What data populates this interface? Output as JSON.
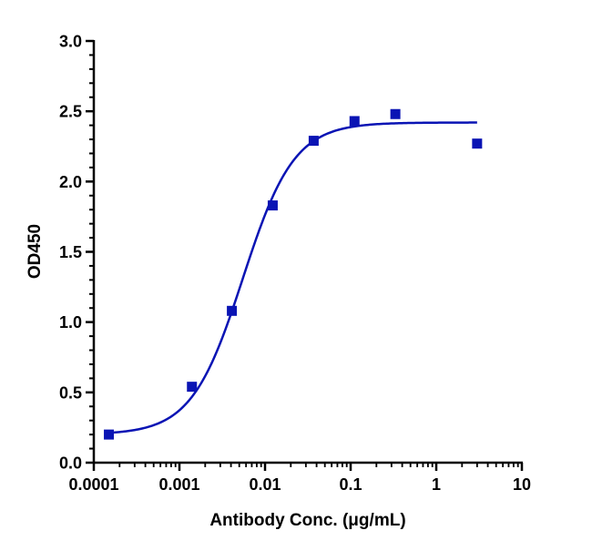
{
  "chart_data": {
    "type": "scatter",
    "title": "",
    "xlabel": "Antibody Conc. (μg/mL)",
    "ylabel": "OD450",
    "x_scale": "log",
    "xlim": [
      0.0001,
      10
    ],
    "ylim": [
      0,
      3.0
    ],
    "x_ticks": [
      0.0001,
      0.001,
      0.01,
      0.1,
      1,
      10
    ],
    "x_tick_labels": [
      "0.0001",
      "0.001",
      "0.01",
      "0.1",
      "1",
      "10"
    ],
    "y_ticks": [
      0,
      0.5,
      1.0,
      1.5,
      2.0,
      2.5,
      3.0
    ],
    "y_tick_labels": [
      "0.0",
      "0.5",
      "1.0",
      "1.5",
      "2.0",
      "2.5",
      "3.0"
    ],
    "grid": false,
    "legend": "none",
    "color": "#0a14b4",
    "series": [
      {
        "marker": "square",
        "x": [
          0.00015,
          0.0014,
          0.0041,
          0.0123,
          0.037,
          0.111,
          0.333,
          3.0
        ],
        "y": [
          0.2,
          0.54,
          1.08,
          1.83,
          2.29,
          2.43,
          2.48,
          2.27
        ]
      }
    ],
    "fit_curve": {
      "model": "4PL",
      "bottom": 0.2,
      "top": 2.42,
      "ec50": 0.0055,
      "hill": 1.45,
      "x_range": [
        0.00015,
        3.0
      ]
    }
  }
}
